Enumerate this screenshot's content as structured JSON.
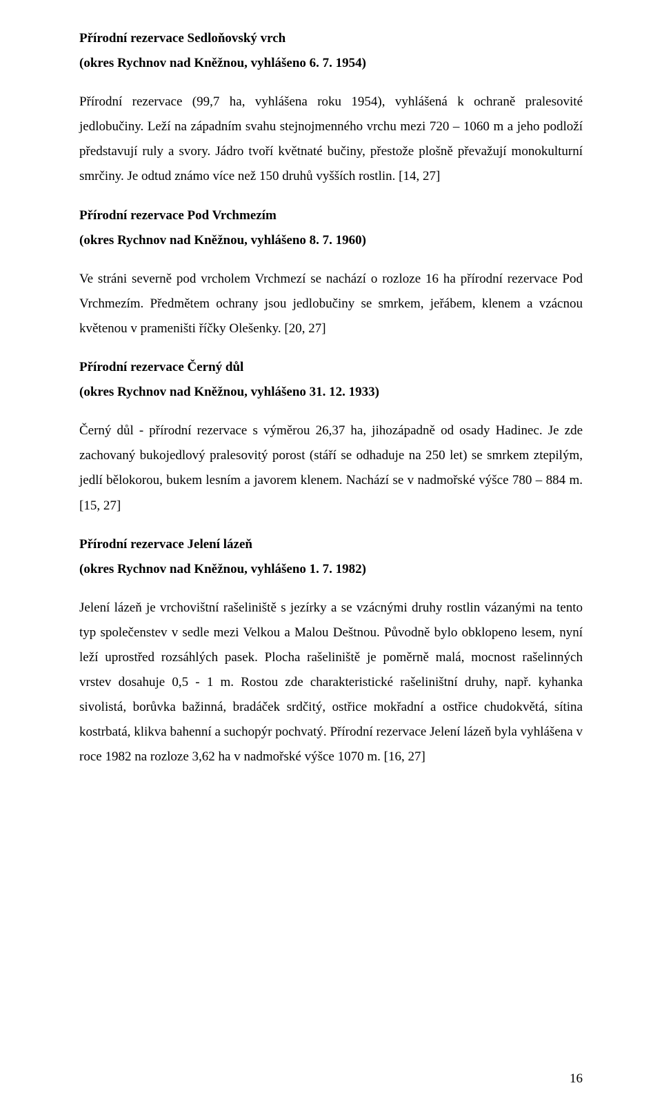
{
  "typography": {
    "font_family": "Times New Roman",
    "body_fontsize_pt": 12,
    "line_height": 1.9,
    "text_color": "#000000",
    "background_color": "#ffffff",
    "bold_weight": 700,
    "align_body": "justify"
  },
  "page_number": "16",
  "sections": [
    {
      "title": "Přírodní rezervace Sedloňovský vrch",
      "subtitle": "(okres Rychnov nad Kněžnou, vyhlášeno 6. 7. 1954)",
      "body": "Přírodní rezervace (99,7 ha, vyhlášena roku 1954), vyhlášená k ochraně pralesovité jedlobučiny. Leží na západním svahu stejnojmenného vrchu mezi 720 – 1060 m a jeho podloží představují ruly a svory. Jádro tvoří květnaté bučiny, přestože plošně převažují monokulturní smrčiny. Je odtud známo více než 150 druhů vyšších rostlin. [14, 27]"
    },
    {
      "title": "Přírodní rezervace Pod Vrchmezím",
      "subtitle": "(okres Rychnov nad Kněžnou, vyhlášeno 8. 7. 1960)",
      "body": "Ve stráni severně pod vrcholem Vrchmezí se nachází o rozloze 16 ha přírodní rezervace Pod Vrchmezím. Předmětem ochrany jsou jedlobučiny se smrkem, jeřábem, klenem a vzácnou květenou v prameništi říčky Olešenky. [20, 27]"
    },
    {
      "title": "Přírodní rezervace Černý důl",
      "subtitle": "(okres Rychnov nad Kněžnou, vyhlášeno 31. 12. 1933)",
      "body": "Černý důl - přírodní rezervace s výměrou 26,37 ha, jihozápadně od osady Hadinec. Je zde zachovaný bukojedlový pralesovitý porost (stáří se odhaduje na 250 let) se smrkem ztepilým, jedlí bělokorou, bukem lesním a javorem klenem. Nachází se v nadmořské výšce 780 – 884 m. [15, 27]"
    },
    {
      "title": "Přírodní rezervace Jelení lázeň",
      "subtitle": "(okres Rychnov nad Kněžnou, vyhlášeno 1. 7. 1982)",
      "body": "Jelení lázeň je vrchovištní rašeliniště s jezírky a se vzácnými druhy rostlin vázanými na tento typ společenstev v sedle mezi Velkou a Malou Deštnou. Původně bylo obklopeno lesem, nyní leží uprostřed rozsáhlých pasek. Plocha rašeliniště je poměrně malá, mocnost rašelinných vrstev dosahuje 0,5 - 1 m. Rostou zde charakteristické rašeliništní druhy, např. kyhanka sivolistá, borůvka bažinná, bradáček srdčitý, ostřice mokřadní a ostřice chudokvětá, sítina kostrbatá, klikva bahenní a suchopýr pochvatý. Přírodní rezervace Jelení lázeň byla vyhlášena v roce 1982 na rozloze 3,62 ha v nadmořské výšce 1070 m. [16, 27]"
    }
  ]
}
